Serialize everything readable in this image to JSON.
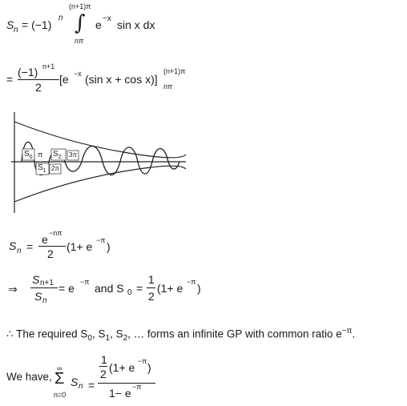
{
  "eq1": {
    "lhs": "S",
    "lhs_sub": "n",
    "equals_neg1": "= (−1)",
    "exp_n": "n",
    "upper_limit": "(n+1)π",
    "integral": "∫",
    "lower_limit": "nπ",
    "integrand_e": "e",
    "integrand_exp": "−x",
    "integrand_rest": "sin x dx"
  },
  "eq2": {
    "equals": "=",
    "numerator": "(−1)",
    "num_exp": "n+1",
    "denominator": "2",
    "bracket_body": "[e",
    "bracket_exp": "−x",
    "bracket_rest": "(sin x + cos x)]",
    "upper_limit": "(n+1)π",
    "lower_limit": "nπ"
  },
  "graph": {
    "label_s0": "S",
    "label_s0_sub": "0",
    "label_pi": "π",
    "label_s2": "S",
    "label_s2_sub": "2",
    "label_3pi": "3π",
    "label_s1": "S",
    "label_s1_sub": "1",
    "label_2pi": "2π"
  },
  "eq3": {
    "lhs": "S",
    "lhs_sub": "n",
    "equals": "=",
    "numerator": "e",
    "num_exp": "−nπ",
    "denominator": "2",
    "rest": "(1+ e",
    "rest_exp": "−π",
    "close": ")"
  },
  "eq4": {
    "arrow": "⇒",
    "num": "S",
    "num_sub": "n+1",
    "den": "S",
    "den_sub": "n",
    "equals_e": "= e",
    "exp": "−π",
    "and_text": "and S",
    "and_sub": "0",
    "equals": "=",
    "half_num": "1",
    "half_den": "2",
    "rest": "(1+ e",
    "rest_exp": "−π",
    "close": ")"
  },
  "conclusion": {
    "therefore": "∴",
    "text1": "The required S",
    "sub0": "0",
    "comma1": ", S",
    "sub1": "1",
    "comma2": ", S",
    "sub2": "2",
    "text2": ", … forms an infinite GP with common ratio e",
    "exp": "−π",
    "period": "."
  },
  "eq5": {
    "lead": "We have,",
    "sigma": "Σ",
    "upper": "∞",
    "lower": "n=0",
    "sn": "S",
    "sn_sub": "n",
    "equals": "=",
    "half_num": "1",
    "half_den": "2",
    "paren": "(1+ e",
    "paren_exp": "−π",
    "paren_close": ")",
    "den_text": "1− e",
    "den_exp": "−π"
  }
}
